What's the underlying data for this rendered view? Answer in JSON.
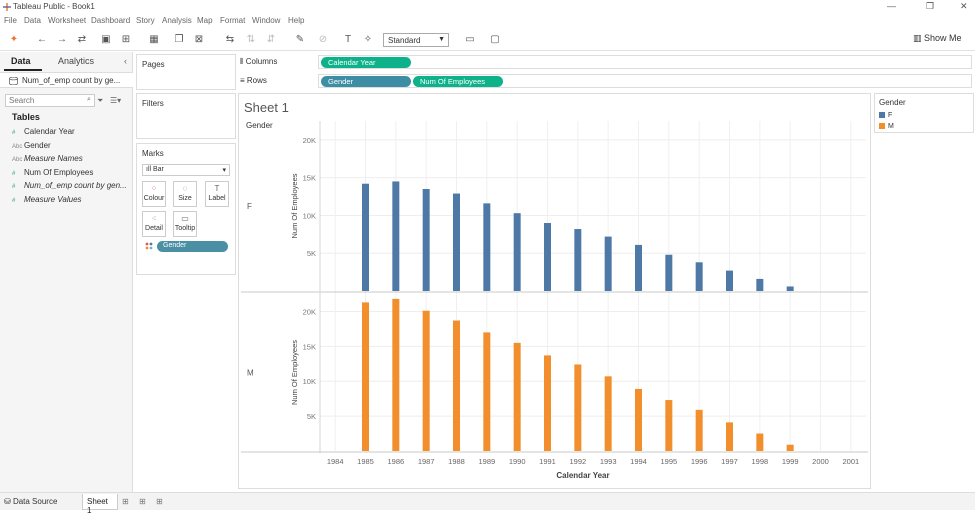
{
  "window": {
    "title": "Tableau Public - Book1",
    "controls": [
      "—",
      "❐",
      "✕"
    ]
  },
  "menu": [
    "File",
    "Data",
    "Worksheet",
    "Dashboard",
    "Story",
    "Analysis",
    "Map",
    "Format",
    "Window",
    "Help"
  ],
  "toolbar": {
    "fit": "Standard",
    "show_me": "Show Me"
  },
  "left_pane": {
    "tabs": [
      "Data",
      "Analytics"
    ],
    "data_source": "Num_of_emp count by ge...",
    "search_placeholder": "Search",
    "tables_label": "Tables",
    "fields": [
      {
        "name": "Calendar Year",
        "icon": "#",
        "kind": "green",
        "italic": false
      },
      {
        "name": "Gender",
        "icon": "Abc",
        "kind": "dim",
        "italic": false
      },
      {
        "name": "Measure Names",
        "icon": "Abc",
        "kind": "dim",
        "italic": true
      },
      {
        "name": "Num Of Employees",
        "icon": "#",
        "kind": "green",
        "italic": false
      },
      {
        "name": "Num_of_emp count by gen...",
        "icon": "#",
        "kind": "green",
        "italic": true
      },
      {
        "name": "Measure Values",
        "icon": "#",
        "kind": "green",
        "italic": true
      }
    ]
  },
  "cards": {
    "pages": "Pages",
    "filters": "Filters",
    "marks": "Marks",
    "mark_type": "Bar",
    "mark_buttons": [
      "Colour",
      "Size",
      "Label",
      "Detail",
      "Tooltip"
    ],
    "marks_pill": "Gender"
  },
  "shelves": {
    "columns_label": "Columns",
    "rows_label": "Rows",
    "columns_pills": [
      "Calendar Year"
    ],
    "rows_pills": [
      "Gender",
      "Num Of Employees"
    ]
  },
  "sheet": {
    "title": "Sheet 1",
    "row_header": "Gender"
  },
  "legend": {
    "title": "Gender",
    "items": [
      {
        "label": "F",
        "color": "#4e79a7"
      },
      {
        "label": "M",
        "color": "#f28e2b"
      }
    ]
  },
  "bottom": {
    "data_source_tab": "Data Source",
    "sheet_tab": "Sheet 1"
  },
  "chart_data": {
    "type": "bar",
    "xlabel": "Calendar Year",
    "ylabel": "Num Of Employees",
    "x_ticks": [
      "1984",
      "1985",
      "1986",
      "1987",
      "1988",
      "1989",
      "1990",
      "1991",
      "1992",
      "1993",
      "1994",
      "1995",
      "1996",
      "1997",
      "1998",
      "1999",
      "2000",
      "2001"
    ],
    "categories": [
      "1985",
      "1986",
      "1987",
      "1988",
      "1989",
      "1990",
      "1991",
      "1992",
      "1993",
      "1994",
      "1995",
      "1996",
      "1997",
      "1998",
      "1999"
    ],
    "y_ticks": [
      "5K",
      "10K",
      "15K",
      "20K"
    ],
    "ylim": [
      0,
      22500
    ],
    "grid": true,
    "legend": "right",
    "series": [
      {
        "name": "F",
        "color": "#4e79a7",
        "values": [
          14200,
          14500,
          13500,
          12900,
          11600,
          10300,
          9000,
          8200,
          7200,
          6100,
          4800,
          3800,
          2700,
          1600,
          600
        ]
      },
      {
        "name": "M",
        "color": "#f28e2b",
        "values": [
          21300,
          21800,
          20100,
          18700,
          17000,
          15500,
          13700,
          12400,
          10700,
          8900,
          7300,
          5900,
          4100,
          2500,
          900
        ]
      }
    ]
  }
}
